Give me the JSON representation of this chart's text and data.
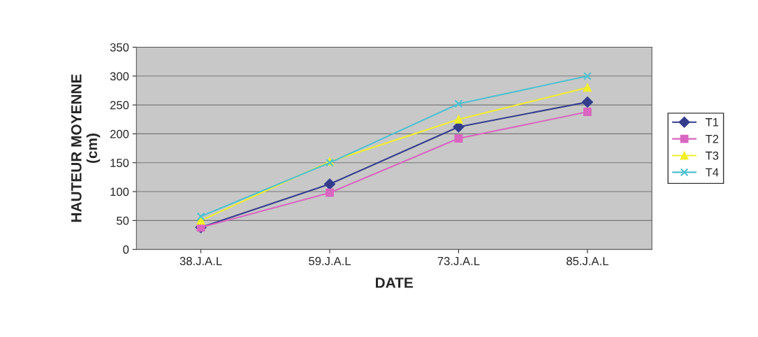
{
  "chart_data": {
    "type": "line",
    "xlabel": "DATE",
    "ylabel": "HAUTEUR MOYENNE\n(cm)",
    "categories": [
      "38.J.A.L",
      "59.J.A.L",
      "73.J.A.L",
      "85.J.A.L"
    ],
    "series": [
      {
        "name": "T1",
        "color": "#333d8c",
        "marker": "diamond",
        "values": [
          38,
          113,
          212,
          255
        ]
      },
      {
        "name": "T2",
        "color": "#d966c0",
        "marker": "square",
        "values": [
          38,
          98,
          192,
          238
        ]
      },
      {
        "name": "T3",
        "color": "#f2ef2a",
        "marker": "triangle",
        "values": [
          50,
          152,
          225,
          280
        ]
      },
      {
        "name": "T4",
        "color": "#4fc0d0",
        "marker": "cross",
        "values": [
          57,
          150,
          252,
          300
        ]
      }
    ],
    "ylim": [
      0,
      350
    ],
    "yticks": [
      0,
      50,
      100,
      150,
      200,
      250,
      300,
      350
    ],
    "grid": "y",
    "legend": "right"
  }
}
